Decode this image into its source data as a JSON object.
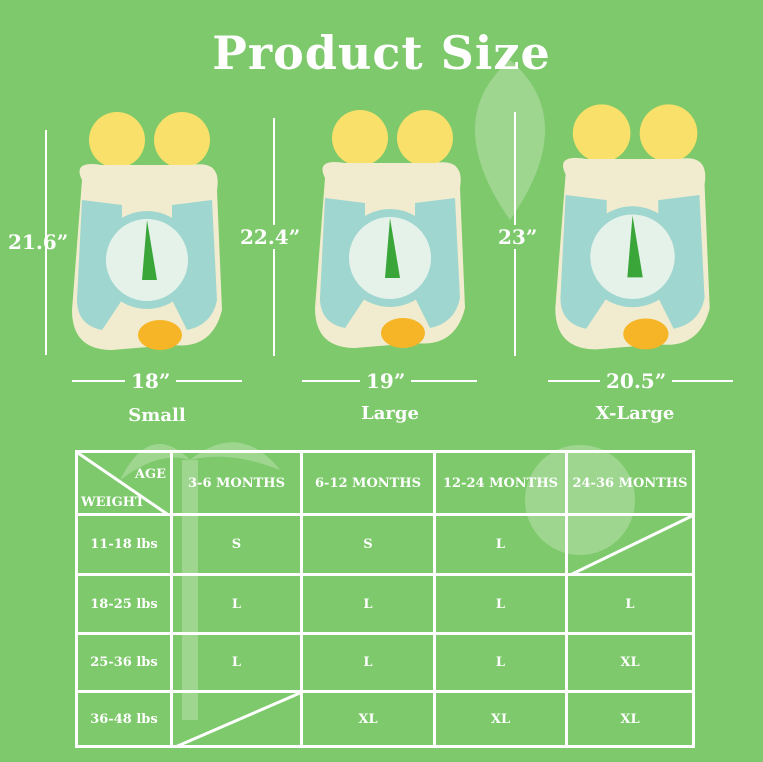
{
  "title": "Product Size",
  "colors": {
    "background": "#7dc96b",
    "float_body": "#f1eccf",
    "float_blue": "#9fd6cf",
    "float_yellow": "#f8e06a",
    "fish": "#f6b526"
  },
  "products": [
    {
      "height": "21.6”",
      "width": "18”",
      "label": "Small"
    },
    {
      "height": "22.4”",
      "width": "19”",
      "label": "Large"
    },
    {
      "height": "23”",
      "width": "20.5”",
      "label": "X-Large"
    }
  ],
  "table": {
    "corner_top": "AGE",
    "corner_bottom": "WEIGHT",
    "columns": [
      "3-6 MONTHS",
      "6-12 MONTHS",
      "12-24 MONTHS",
      "24-36 MONTHS"
    ],
    "rows": [
      {
        "weight": "11-18 lbs",
        "values": [
          "S",
          "S",
          "L",
          ""
        ]
      },
      {
        "weight": "18-25 lbs",
        "values": [
          "L",
          "L",
          "L",
          "L"
        ]
      },
      {
        "weight": "25-36 lbs",
        "values": [
          "L",
          "L",
          "L",
          "XL"
        ]
      },
      {
        "weight": "36-48 lbs",
        "values": [
          "",
          "XL",
          "XL",
          "XL"
        ]
      }
    ]
  }
}
